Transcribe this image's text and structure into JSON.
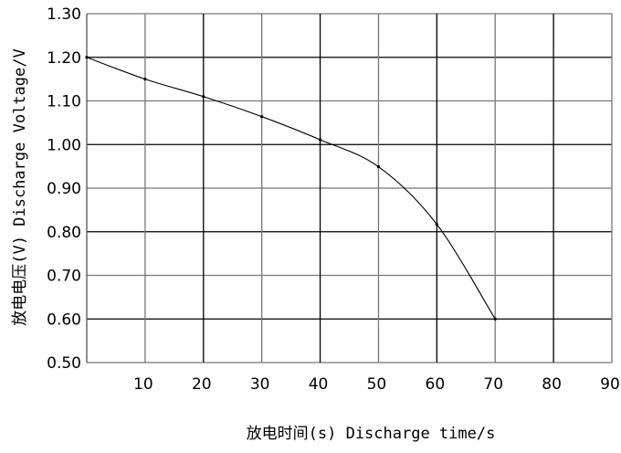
{
  "chart_data": {
    "type": "line",
    "xlabel": "放电时间(s) Discharge time/s",
    "ylabel": "放电电压(V) Discharge Voltage/V",
    "xlim": [
      0,
      90
    ],
    "ylim": [
      0.5,
      1.3
    ],
    "x_ticks": [
      "10",
      "20",
      "30",
      "40",
      "50",
      "60",
      "70",
      "80",
      "90"
    ],
    "y_ticks": [
      "0.50",
      "0.60",
      "0.70",
      "0.80",
      "0.90",
      "1.00",
      "1.10",
      "1.20",
      "1.30"
    ],
    "grid": true,
    "series": [
      {
        "x": [
          0,
          10,
          20,
          30,
          40,
          50,
          60,
          70
        ],
        "y": [
          1.2,
          1.15,
          1.11,
          1.064,
          1.011,
          0.949,
          0.817,
          0.6
        ],
        "color": "#000000"
      }
    ]
  }
}
